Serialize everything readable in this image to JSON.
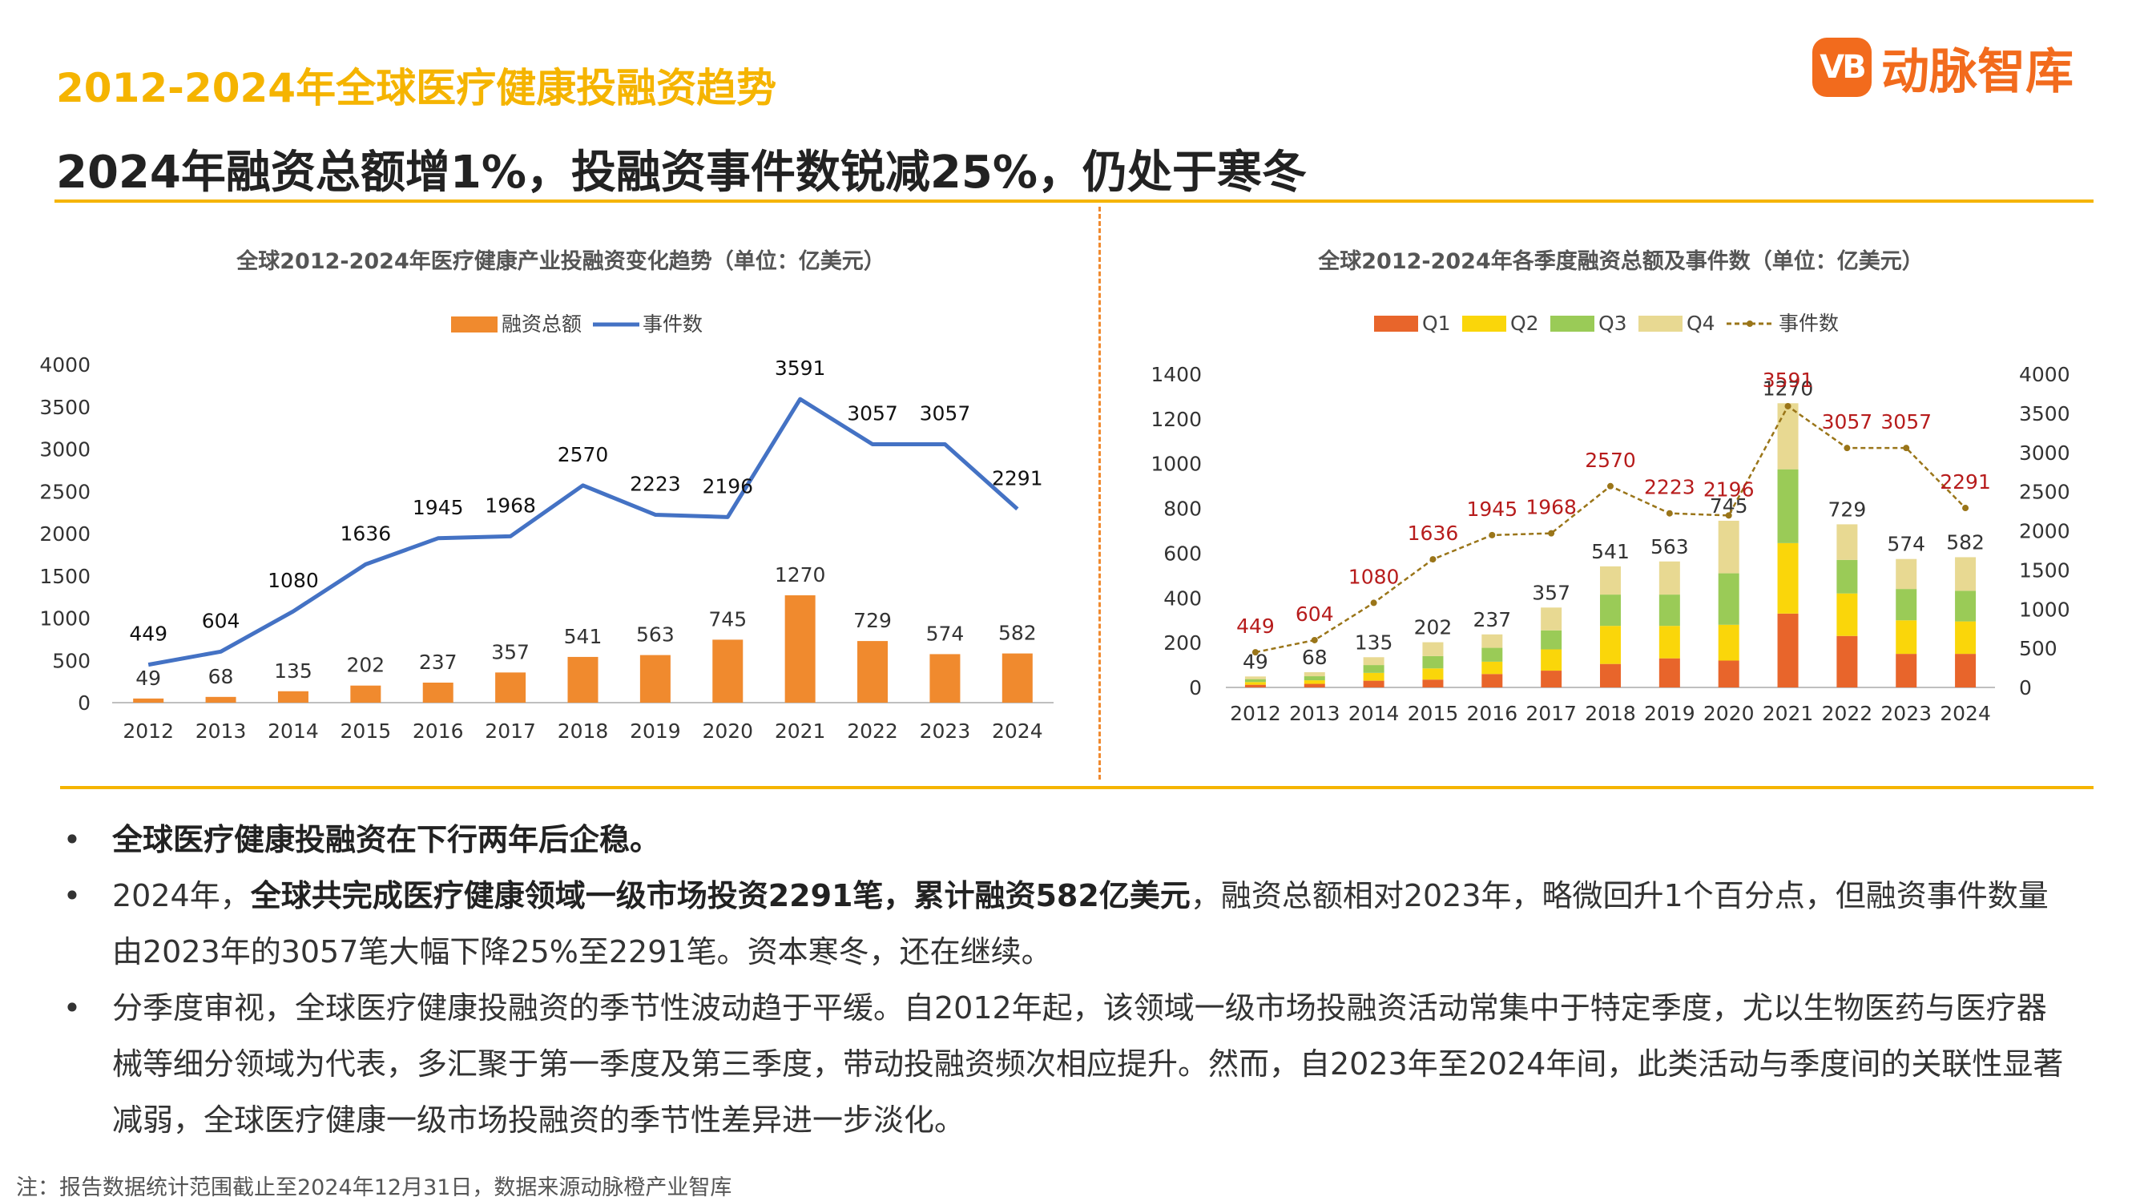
{
  "page": {
    "kicker": "2012-2024年全球医疗健康投融资趋势",
    "headline": "2024年融资总额增1%，投融资事件数锐减25%，仍处于寒冬",
    "logo": {
      "badge": "VB",
      "text": "动脉智库",
      "icon": "vb-logo-icon",
      "color": "#F26B1D"
    },
    "accent_color": "#F5B400",
    "bullets": [
      {
        "parts": [
          {
            "text": "全球医疗健康投融资在下行两年后企稳。",
            "bold": true
          }
        ]
      },
      {
        "parts": [
          {
            "text": "2024年，",
            "bold": false
          },
          {
            "text": "全球共完成医疗健康领域一级市场投资2291笔，累计融资582亿美元",
            "bold": true
          },
          {
            "text": "，融资总额相对2023年，略微回升1个百分点，但融资事件数量由2023年的3057笔大幅下降25%至2291笔。资本寒冬，还在继续。",
            "bold": false
          }
        ]
      },
      {
        "parts": [
          {
            "text": "分季度审视，全球医疗健康投融资的季节性波动趋于平缓。自2012年起，该领域一级市场投融资活动常集中于特定季度，尤以生物医药与医疗器械等细分领域为代表，多汇聚于第一季度及第三季度，带动投融资频次相应提升。然而，自2023年至2024年间，此类活动与季度间的关联性显著减弱，全球医疗健康一级市场投融资的季节性差异进一步淡化。",
            "bold": false
          }
        ]
      }
    ],
    "note": "注：报告数据统计范围截止至2024年12月31日，数据来源动脉橙产业智库"
  },
  "chart_data": [
    {
      "type": "bar",
      "title": "全球2012-2024年医疗健康产业投融资变化趋势（单位：亿美元）",
      "categories": [
        "2012",
        "2013",
        "2014",
        "2015",
        "2016",
        "2017",
        "2018",
        "2019",
        "2020",
        "2021",
        "2022",
        "2023",
        "2024"
      ],
      "ylim": [
        0,
        4000
      ],
      "yticks": [
        0,
        500,
        1000,
        1500,
        2000,
        2500,
        3000,
        3500,
        4000
      ],
      "legend_position": "top",
      "grid": false,
      "series": [
        {
          "name": "融资总额",
          "type": "bar",
          "color": "#F08A2E",
          "values": [
            49,
            68,
            135,
            202,
            237,
            357,
            541,
            563,
            745,
            1270,
            729,
            574,
            582
          ]
        },
        {
          "name": "事件数",
          "type": "line",
          "color": "#4472C4",
          "values": [
            449,
            604,
            1080,
            1636,
            1945,
            1968,
            2570,
            2223,
            2196,
            3591,
            3057,
            3057,
            2291
          ]
        }
      ]
    },
    {
      "type": "bar",
      "title": "全球2012-2024年各季度融资总额及事件数（单位：亿美元）",
      "categories": [
        "2012",
        "2013",
        "2014",
        "2015",
        "2016",
        "2017",
        "2018",
        "2019",
        "2020",
        "2021",
        "2022",
        "2023",
        "2024"
      ],
      "ylim": [
        0,
        1400
      ],
      "yticks": [
        0,
        200,
        400,
        600,
        800,
        1000,
        1200,
        1400
      ],
      "y2lim": [
        0,
        4000
      ],
      "y2ticks": [
        0,
        500,
        1000,
        1500,
        2000,
        2500,
        3000,
        3500,
        4000
      ],
      "legend_position": "top",
      "grid": false,
      "stacked": true,
      "totals": [
        49,
        68,
        135,
        202,
        237,
        357,
        541,
        563,
        745,
        1270,
        729,
        574,
        582
      ],
      "series": [
        {
          "name": "Q1",
          "type": "bar",
          "color": "#E8652B",
          "values": [
            12,
            16,
            30,
            35,
            60,
            75,
            105,
            130,
            120,
            330,
            230,
            150,
            150
          ]
        },
        {
          "name": "Q2",
          "type": "bar",
          "color": "#FAD60A",
          "values": [
            12,
            16,
            35,
            50,
            55,
            95,
            170,
            145,
            160,
            315,
            190,
            150,
            145
          ]
        },
        {
          "name": "Q3",
          "type": "bar",
          "color": "#9ACB57",
          "values": [
            13,
            18,
            35,
            55,
            62,
            85,
            140,
            140,
            230,
            330,
            150,
            140,
            137
          ]
        },
        {
          "name": "Q4",
          "type": "bar",
          "color": "#E8D992",
          "values": [
            12,
            18,
            35,
            62,
            60,
            102,
            126,
            148,
            235,
            295,
            159,
            134,
            150
          ]
        },
        {
          "name": "事件数",
          "type": "line",
          "axis": "right",
          "color": "#9A7519",
          "label_color": "#B71C1C",
          "values": [
            449,
            604,
            1080,
            1636,
            1945,
            1968,
            2570,
            2223,
            2196,
            3591,
            3057,
            3057,
            2291
          ]
        }
      ]
    }
  ]
}
